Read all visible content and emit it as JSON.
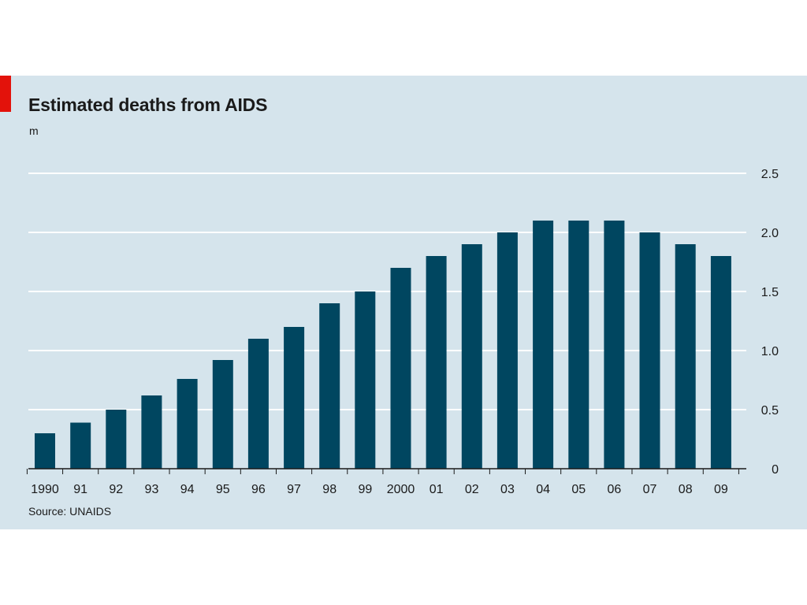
{
  "colors": {
    "panel_background": "#d5e4ec",
    "bar": "#004660",
    "gridline": "#ffffff",
    "accent": "#e3120b",
    "axis": "#1a1a1a"
  },
  "chart_data": {
    "type": "bar",
    "title": "Estimated deaths from AIDS",
    "unit_label": "m",
    "source": "Source: UNAIDS",
    "categories": [
      "1990",
      "91",
      "92",
      "93",
      "94",
      "95",
      "96",
      "97",
      "98",
      "99",
      "2000",
      "01",
      "02",
      "03",
      "04",
      "05",
      "06",
      "07",
      "08",
      "09"
    ],
    "values": [
      0.3,
      0.39,
      0.5,
      0.62,
      0.76,
      0.92,
      1.1,
      1.2,
      1.4,
      1.5,
      1.7,
      1.8,
      1.9,
      2.0,
      2.1,
      2.1,
      2.1,
      2.0,
      1.9,
      1.8
    ],
    "ylim": [
      0,
      2.5
    ],
    "yticks": [
      0,
      0.5,
      1.0,
      1.5,
      2.0,
      2.5
    ],
    "ytick_labels": [
      "0",
      "0.5",
      "1.0",
      "1.5",
      "2.0",
      "2.5"
    ],
    "y_axis_side": "right",
    "grid": true,
    "legend": "none"
  }
}
